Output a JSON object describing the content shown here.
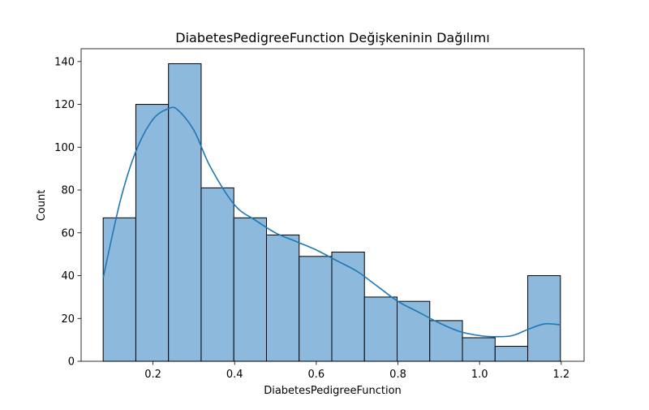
{
  "chart_data": {
    "type": "bar",
    "title": "DiabetesPedigreeFunction Değişkeninin Dağılımı",
    "xlabel": "DiabetesPedigreeFunction",
    "ylabel": "Count",
    "xlim": [
      0.024,
      1.256
    ],
    "ylim": [
      0,
      146
    ],
    "bin_edges": [
      0.078,
      0.158,
      0.238,
      0.318,
      0.398,
      0.478,
      0.558,
      0.638,
      0.718,
      0.798,
      0.878,
      0.958,
      1.038,
      1.118,
      1.198
    ],
    "values": [
      67,
      120,
      139,
      81,
      67,
      59,
      49,
      51,
      30,
      28,
      19,
      11,
      7,
      40
    ],
    "x_ticks": [
      0.2,
      0.4,
      0.6,
      0.8,
      1.0,
      1.2
    ],
    "x_tick_labels": [
      "0.2",
      "0.4",
      "0.6",
      "0.8",
      "1.0",
      "1.2"
    ],
    "y_ticks": [
      0,
      20,
      40,
      60,
      80,
      100,
      120,
      140
    ],
    "y_tick_labels": [
      "0",
      "20",
      "40",
      "60",
      "80",
      "100",
      "120",
      "140"
    ],
    "kde": {
      "x": [
        0.078,
        0.12,
        0.158,
        0.2,
        0.238,
        0.26,
        0.3,
        0.34,
        0.4,
        0.45,
        0.5,
        0.55,
        0.6,
        0.65,
        0.7,
        0.75,
        0.8,
        0.85,
        0.9,
        0.95,
        1.0,
        1.04,
        1.08,
        1.12,
        1.16,
        1.198
      ],
      "y": [
        39,
        75,
        98,
        113,
        118,
        117.5,
        108,
        91,
        73,
        66,
        60,
        56,
        52,
        47,
        42,
        35,
        28,
        23,
        18,
        14,
        12,
        11.5,
        12,
        15,
        17.5,
        17
      ]
    },
    "grid": false,
    "legend": "none",
    "colors": {
      "bar_fill": "#8dbadc",
      "kde_line": "#1f77b4",
      "edge": "#000000"
    }
  }
}
